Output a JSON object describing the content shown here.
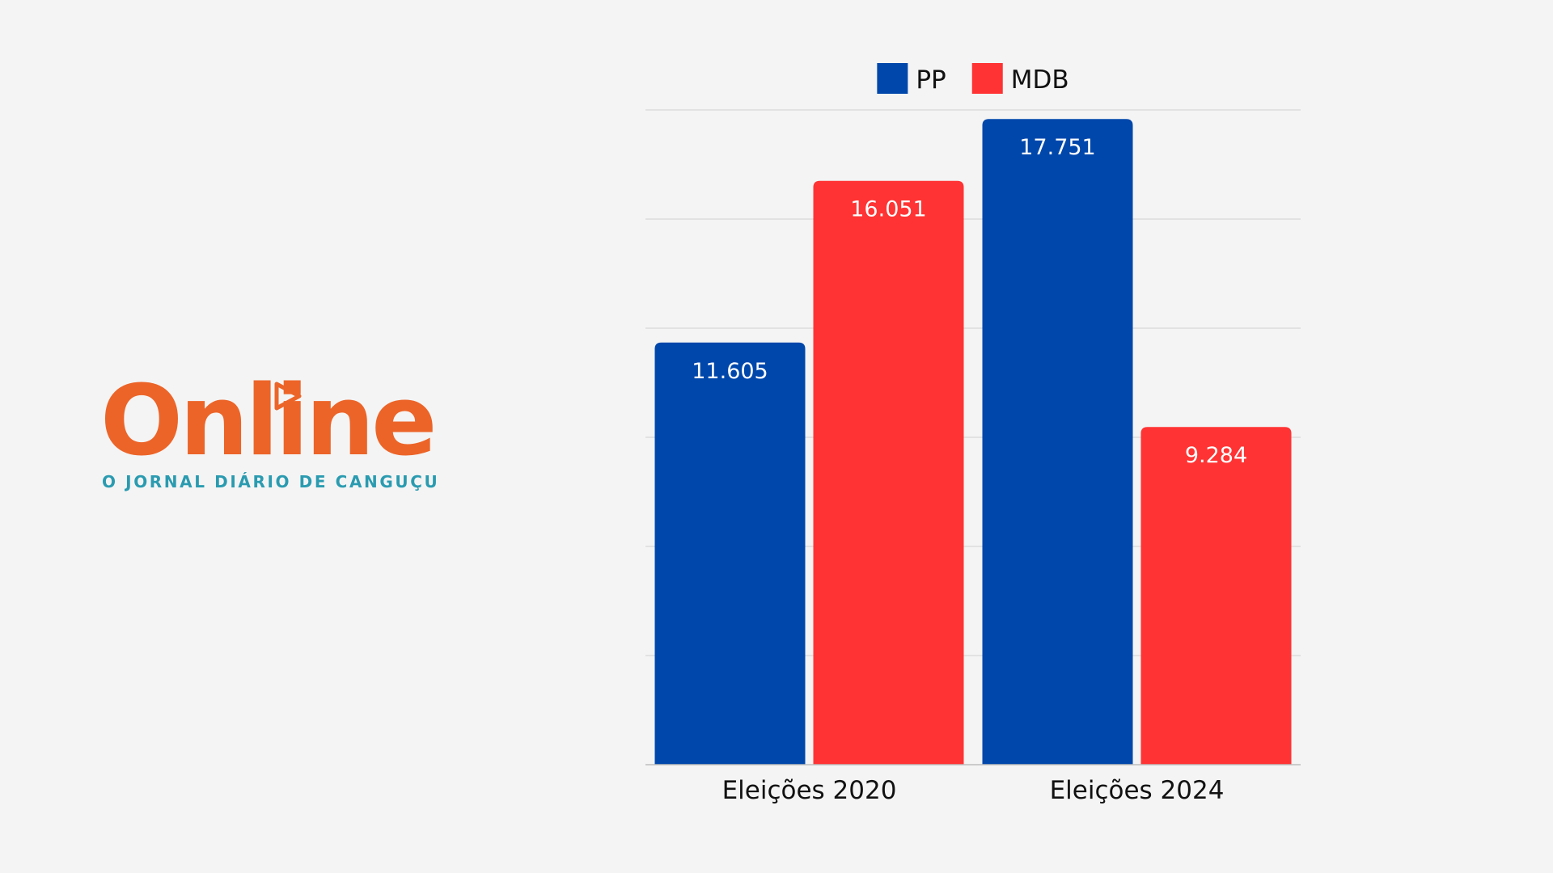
{
  "brand": {
    "name": "Online",
    "tagline": "O JORNAL DIÁRIO DE CANGUÇU",
    "color": "#ec6428",
    "tagline_color": "#2a9bb0"
  },
  "chart_data": {
    "type": "bar",
    "title": "",
    "xlabel": "",
    "ylabel": "",
    "categories": [
      "Eleições 2020",
      "Eleições 2024"
    ],
    "series": [
      {
        "name": "PP",
        "color": "#0047ab",
        "values": [
          11605,
          17751
        ],
        "labels": [
          "11.605",
          "17.751"
        ]
      },
      {
        "name": "MDB",
        "color": "#ff3333",
        "values": [
          16051,
          9284
        ],
        "labels": [
          "16.051",
          "9.284"
        ]
      }
    ],
    "ylim": [
      0,
      18000
    ],
    "grid": true,
    "legend": "top-center",
    "data_labels": "inside-top"
  }
}
